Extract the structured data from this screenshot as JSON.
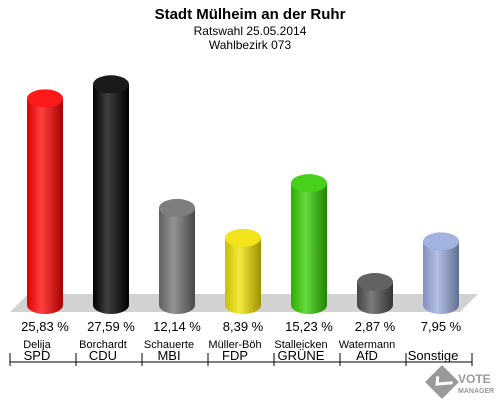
{
  "chart_data": {
    "type": "bar",
    "title": "Stadt Mülheim an der Ruhr",
    "subtitle": "Ratswahl 25.05.2014",
    "subtitle2": "Wahlbezirk 073",
    "categories": [
      "SPD",
      "CDU",
      "MBI",
      "FDP",
      "GRÜNE",
      "AfD",
      "Sonstige"
    ],
    "candidates": [
      "Delija",
      "Borchardt",
      "Schauerte",
      "Müller-Böh",
      "Stalleicken",
      "Watermann",
      ""
    ],
    "values": [
      25.83,
      27.59,
      12.14,
      8.39,
      15.23,
      2.87,
      7.95
    ],
    "value_labels": [
      "25,83 %",
      "27,59 %",
      "12,14 %",
      "8,39 %",
      "15,23 %",
      "2,87 %",
      "7,95 %"
    ],
    "colors": [
      "#ff0000",
      "#000000",
      "#707070",
      "#f0e000",
      "#33cc00",
      "#505050",
      "#99aadd"
    ]
  },
  "logo": {
    "line1": "VOTE",
    "line2": "MANAGER"
  }
}
